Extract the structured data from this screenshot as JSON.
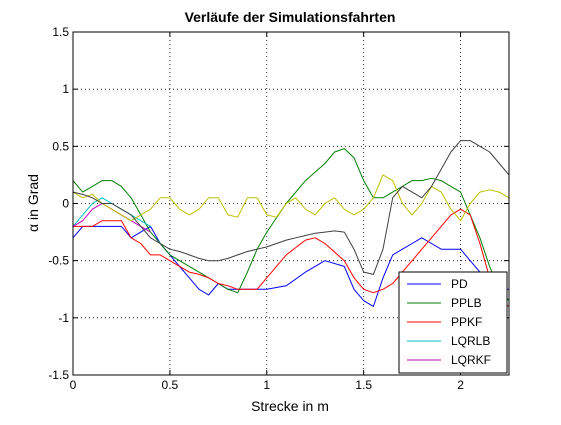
{
  "chart_data": {
    "type": "line",
    "title": "Verläufe der Simulationsfahrten",
    "xlabel": "Strecke in m",
    "ylabel": "α in Grad",
    "xlim": [
      0,
      2.25
    ],
    "ylim": [
      -1.5,
      1.5
    ],
    "xticks": [
      "0",
      "0.5",
      "1",
      "1.5",
      "2"
    ],
    "yticks": [
      "-1.5",
      "-1",
      "-0.5",
      "0",
      "0.5",
      "1",
      "1.5"
    ],
    "grid": true,
    "legend_position": "bottom-right",
    "series": [
      {
        "name": "PD",
        "color": "#0000ff",
        "x": [
          0,
          0.05,
          0.1,
          0.15,
          0.2,
          0.25,
          0.3,
          0.35,
          0.4,
          0.45,
          0.5,
          0.55,
          0.6,
          0.65,
          0.7,
          0.75,
          0.8,
          0.85,
          0.9,
          0.95,
          1.0,
          1.1,
          1.2,
          1.3,
          1.4,
          1.45,
          1.5,
          1.55,
          1.6,
          1.65,
          1.7,
          1.75,
          1.8,
          1.85,
          1.9,
          1.95,
          2.0,
          2.05,
          2.1,
          2.15,
          2.2,
          2.25
        ],
        "values": [
          -0.3,
          -0.2,
          -0.2,
          -0.2,
          -0.2,
          -0.2,
          -0.3,
          -0.25,
          -0.2,
          -0.35,
          -0.45,
          -0.55,
          -0.65,
          -0.75,
          -0.8,
          -0.7,
          -0.75,
          -0.75,
          -0.75,
          -0.75,
          -0.75,
          -0.72,
          -0.6,
          -0.5,
          -0.55,
          -0.75,
          -0.85,
          -0.9,
          -0.65,
          -0.45,
          -0.4,
          -0.35,
          -0.3,
          -0.35,
          -0.4,
          -0.4,
          -0.4,
          -0.5,
          -0.6,
          -0.7,
          -0.75,
          -0.75
        ]
      },
      {
        "name": "PPLB",
        "color": "#008000",
        "x": [
          0,
          0.05,
          0.1,
          0.15,
          0.2,
          0.25,
          0.3,
          0.35,
          0.4,
          0.45,
          0.5,
          0.55,
          0.6,
          0.65,
          0.7,
          0.75,
          0.8,
          0.85,
          0.9,
          0.95,
          1.0,
          1.1,
          1.2,
          1.3,
          1.35,
          1.4,
          1.45,
          1.5,
          1.55,
          1.6,
          1.65,
          1.7,
          1.75,
          1.8,
          1.85,
          1.9,
          1.95,
          2.0,
          2.05,
          2.1,
          2.15,
          2.2,
          2.25
        ],
        "values": [
          0.2,
          0.1,
          0.15,
          0.2,
          0.2,
          0.15,
          0.05,
          -0.1,
          -0.25,
          -0.35,
          -0.45,
          -0.5,
          -0.55,
          -0.6,
          -0.65,
          -0.7,
          -0.75,
          -0.78,
          -0.6,
          -0.4,
          -0.25,
          0.0,
          0.2,
          0.35,
          0.45,
          0.48,
          0.4,
          0.2,
          0.05,
          0.05,
          0.1,
          0.15,
          0.2,
          0.2,
          0.22,
          0.2,
          0.15,
          0.1,
          -0.1,
          -0.3,
          -0.55,
          -0.75,
          -0.85
        ]
      },
      {
        "name": "PPKF",
        "color": "#ff0000",
        "x": [
          0,
          0.05,
          0.1,
          0.15,
          0.2,
          0.25,
          0.3,
          0.35,
          0.4,
          0.45,
          0.5,
          0.55,
          0.6,
          0.65,
          0.7,
          0.75,
          0.8,
          0.85,
          0.9,
          0.95,
          1.0,
          1.1,
          1.2,
          1.25,
          1.3,
          1.4,
          1.45,
          1.5,
          1.55,
          1.6,
          1.65,
          1.7,
          1.75,
          1.8,
          1.85,
          1.9,
          1.95,
          2.0,
          2.05,
          2.1,
          2.15,
          2.2,
          2.25
        ],
        "values": [
          -0.2,
          -0.2,
          -0.2,
          -0.15,
          -0.15,
          -0.15,
          -0.3,
          -0.35,
          -0.45,
          -0.45,
          -0.5,
          -0.55,
          -0.6,
          -0.62,
          -0.65,
          -0.7,
          -0.72,
          -0.75,
          -0.75,
          -0.75,
          -0.65,
          -0.45,
          -0.32,
          -0.3,
          -0.35,
          -0.5,
          -0.65,
          -0.75,
          -0.78,
          -0.75,
          -0.7,
          -0.6,
          -0.5,
          -0.4,
          -0.3,
          -0.2,
          -0.1,
          -0.05,
          -0.1,
          -0.35,
          -0.65,
          -0.85,
          -0.9
        ]
      },
      {
        "name": "LQRLB",
        "color": "#00bfbf",
        "x": [
          0,
          0.05,
          0.1,
          0.15,
          0.2,
          0.25,
          0.3,
          0.35,
          0.4
        ],
        "values": [
          -0.2,
          -0.1,
          0.0,
          0.05,
          0.0,
          -0.05,
          -0.1,
          -0.15,
          -0.2
        ]
      },
      {
        "name": "LQRKF",
        "color": "#bf00bf",
        "x": [
          0,
          0.05,
          0.1,
          0.15,
          0.2,
          0.25,
          0.3,
          0.35,
          0.4
        ],
        "values": [
          -0.2,
          -0.15,
          -0.05,
          0.0,
          -0.05,
          -0.1,
          -0.15,
          -0.2,
          -0.25
        ]
      },
      {
        "name": "",
        "color": "#bfbf00",
        "x": [
          0,
          0.05,
          0.1,
          0.15,
          0.2,
          0.25,
          0.3,
          0.35,
          0.4,
          0.45,
          0.5,
          0.55,
          0.6,
          0.65,
          0.7,
          0.75,
          0.8,
          0.85,
          0.9,
          0.95,
          1.0,
          1.05,
          1.1,
          1.15,
          1.2,
          1.25,
          1.3,
          1.35,
          1.4,
          1.45,
          1.5,
          1.55,
          1.6,
          1.65,
          1.7,
          1.75,
          1.8,
          1.85,
          1.9,
          1.95,
          2.0,
          2.05,
          2.1,
          2.15,
          2.2,
          2.25
        ],
        "values": [
          0.1,
          0.05,
          0.08,
          0.0,
          -0.05,
          -0.1,
          -0.15,
          -0.1,
          -0.05,
          0.05,
          0.05,
          -0.05,
          -0.1,
          -0.05,
          0.05,
          0.05,
          -0.1,
          -0.12,
          0.05,
          0.05,
          -0.1,
          -0.12,
          0.0,
          0.05,
          -0.05,
          -0.1,
          0.0,
          0.05,
          -0.05,
          -0.1,
          -0.05,
          0.05,
          0.25,
          0.2,
          0.0,
          -0.1,
          0.0,
          0.15,
          0.1,
          -0.05,
          -0.15,
          0.0,
          0.1,
          0.12,
          0.1,
          0.05
        ]
      },
      {
        "name": "",
        "color": "#3f3f3f",
        "x": [
          0,
          0.05,
          0.1,
          0.15,
          0.2,
          0.25,
          0.3,
          0.35,
          0.4,
          0.45,
          0.5,
          0.55,
          0.6,
          0.65,
          0.7,
          0.75,
          0.8,
          0.85,
          0.9,
          0.95,
          1.0,
          1.05,
          1.1,
          1.15,
          1.2,
          1.25,
          1.3,
          1.35,
          1.4,
          1.45,
          1.5,
          1.55,
          1.6,
          1.65,
          1.7,
          1.75,
          1.8,
          1.85,
          1.9,
          1.95,
          2.0,
          2.05,
          2.1,
          2.15,
          2.2,
          2.25
        ],
        "values": [
          0.1,
          0.08,
          0.05,
          0.0,
          0.0,
          -0.05,
          -0.1,
          -0.2,
          -0.3,
          -0.35,
          -0.4,
          -0.42,
          -0.45,
          -0.48,
          -0.5,
          -0.5,
          -0.48,
          -0.45,
          -0.42,
          -0.4,
          -0.38,
          -0.35,
          -0.32,
          -0.3,
          -0.28,
          -0.26,
          -0.25,
          -0.24,
          -0.25,
          -0.4,
          -0.6,
          -0.62,
          -0.4,
          0.05,
          0.15,
          0.1,
          0.05,
          0.15,
          0.3,
          0.45,
          0.55,
          0.55,
          0.5,
          0.45,
          0.35,
          0.25
        ]
      }
    ]
  }
}
